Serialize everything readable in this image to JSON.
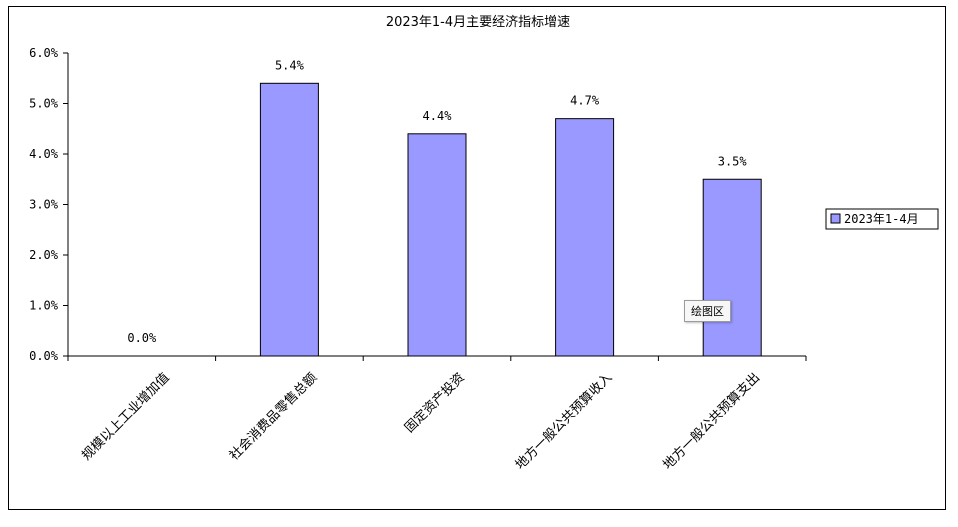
{
  "chart_data": {
    "type": "bar",
    "title": "2023年1-4月主要经济指标增速",
    "categories": [
      "规模以上工业增加值",
      "社会消费品零售总额",
      "固定资产投资",
      "地方一般公共预算收入",
      "地方一般公共预算支出"
    ],
    "series": [
      {
        "name": "2023年1-4月",
        "values": [
          0.0,
          5.4,
          4.4,
          4.7,
          3.5
        ]
      }
    ],
    "data_labels": [
      "0.0%",
      "5.4%",
      "4.4%",
      "4.7%",
      "3.5%"
    ],
    "y_ticks": [
      "0.0%",
      "1.0%",
      "2.0%",
      "3.0%",
      "4.0%",
      "5.0%",
      "6.0%"
    ],
    "ylim": [
      0,
      6
    ],
    "legend_position": "right",
    "colors": {
      "bar": "#9999ff",
      "bar_border": "#000000"
    }
  },
  "tooltip": "绘图区"
}
